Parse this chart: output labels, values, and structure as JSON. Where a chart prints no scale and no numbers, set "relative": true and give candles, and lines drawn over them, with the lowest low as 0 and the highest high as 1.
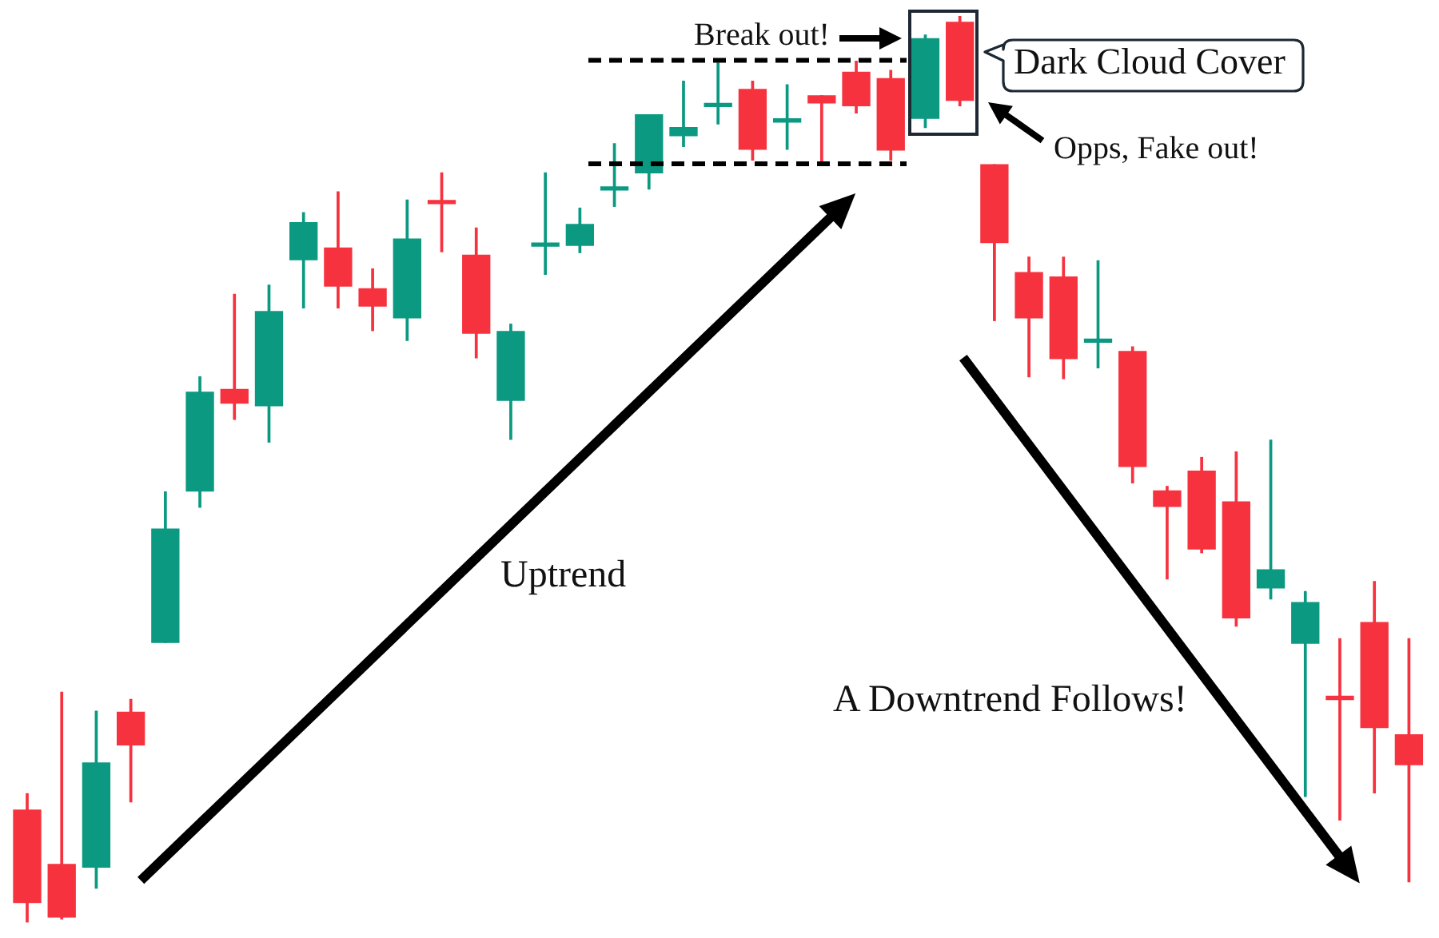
{
  "chart_data": {
    "type": "candlestick",
    "relative": true,
    "categories": [
      null,
      null,
      null,
      null,
      null,
      null,
      null,
      null,
      null,
      null,
      null,
      null,
      null,
      null,
      null,
      null,
      null,
      null,
      null,
      null,
      null,
      null,
      null,
      null,
      null,
      null,
      null,
      null,
      null,
      null,
      null,
      null,
      null,
      null,
      null,
      null,
      null,
      null,
      null,
      null,
      null
    ],
    "ohlc": [
      [
        0.124,
        0.142,
        0,
        0.022
      ],
      [
        0.064,
        0.254,
        0.004,
        0.006
      ],
      [
        0.061,
        0.233,
        0.038,
        0.176
      ],
      [
        0.232,
        0.246,
        0.133,
        0.196
      ],
      [
        0.309,
        0.475,
        0.309,
        0.434
      ],
      [
        0.476,
        0.602,
        0.458,
        0.585
      ],
      [
        0.588,
        0.693,
        0.555,
        0.573
      ],
      [
        0.57,
        0.703,
        0.53,
        0.674
      ],
      [
        0.731,
        0.783,
        0.678,
        0.772
      ],
      [
        0.744,
        0.806,
        0.678,
        0.702
      ],
      [
        0.699,
        0.721,
        0.653,
        0.68
      ],
      [
        0.667,
        0.797,
        0.642,
        0.754
      ],
      [
        0.796,
        0.827,
        0.74,
        0.793
      ],
      [
        0.736,
        0.766,
        0.623,
        0.65
      ],
      [
        0.576,
        0.66,
        0.533,
        0.652
      ],
      [
        0.746,
        0.827,
        0.715,
        0.749
      ],
      [
        0.747,
        0.788,
        0.739,
        0.77
      ],
      [
        0.808,
        0.859,
        0.79,
        0.81
      ],
      [
        0.827,
        0.891,
        0.809,
        0.891
      ],
      [
        0.868,
        0.928,
        0.856,
        0.877
      ],
      [
        0.9,
        0.948,
        0.881,
        0.902
      ],
      [
        0.919,
        0.928,
        0.841,
        0.853
      ],
      [
        0.883,
        0.924,
        0.853,
        0.885
      ],
      [
        0.912,
        0.912,
        0.838,
        0.904
      ],
      [
        0.938,
        0.95,
        0.893,
        0.901
      ],
      [
        0.931,
        0.94,
        0.841,
        0.852
      ],
      [
        0.887,
        0.979,
        0.877,
        0.975
      ],
      [
        0.993,
        1,
        0.901,
        0.907
      ],
      [
        0.836,
        0.836,
        0.664,
        0.75
      ],
      [
        0.717,
        0.734,
        0.602,
        0.667
      ],
      [
        0.712,
        0.734,
        0.6,
        0.622
      ],
      [
        0.64,
        0.73,
        0.612,
        0.641
      ],
      [
        0.63,
        0.635,
        0.485,
        0.503
      ],
      [
        0.476,
        0.481,
        0.379,
        0.459
      ],
      [
        0.498,
        0.513,
        0.408,
        0.412
      ],
      [
        0.464,
        0.519,
        0.327,
        0.336
      ],
      [
        0.369,
        0.532,
        0.357,
        0.389
      ],
      [
        0.308,
        0.365,
        0.139,
        0.353
      ],
      [
        0.249,
        0.313,
        0.113,
        0.246
      ],
      [
        0.331,
        0.376,
        0.143,
        0.215
      ],
      [
        0.207,
        0.313,
        0.045,
        0.174
      ]
    ],
    "colors": [
      "#f6323f",
      "#f6323f",
      "#0b9981",
      "#f6323f",
      "#0b9981",
      "#0b9981",
      "#f6323f",
      "#0b9981",
      "#0b9981",
      "#f6323f",
      "#f6323f",
      "#0b9981",
      "#f6323f",
      "#f6323f",
      "#0b9981",
      "#0b9981",
      "#0b9981",
      "#0b9981",
      "#0b9981",
      "#0b9981",
      "#0b9981",
      "#f6323f",
      "#0b9981",
      "#f6323f",
      "#f6323f",
      "#f6323f",
      "#0b9981",
      "#f6323f",
      "#f6323f",
      "#f6323f",
      "#f6323f",
      "#0b9981",
      "#f6323f",
      "#f6323f",
      "#f6323f",
      "#f6323f",
      "#0b9981",
      "#0b9981",
      "#f6323f",
      "#f6323f",
      "#f6323f"
    ],
    "ref_lines": [
      {
        "axis": "y",
        "value": 0.951,
        "line_style": "dashed",
        "color": "#000000"
      },
      {
        "axis": "y",
        "value": 0.837,
        "line_style": "dashed",
        "color": "#000000"
      }
    ],
    "annotations": [
      "Break out!",
      "Dark Cloud Cover",
      "Opps, Fake out!",
      "Uptrend",
      "A Downtrend Follows!"
    ]
  }
}
